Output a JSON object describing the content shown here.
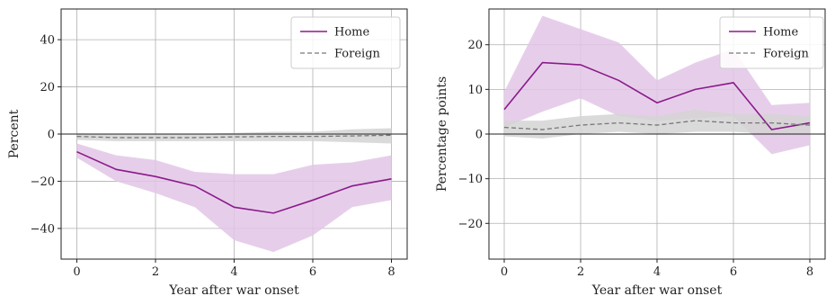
{
  "chart_data": [
    {
      "type": "line",
      "title": "",
      "xlabel": "Year after war onset",
      "ylabel": "Percent",
      "xlim": [
        -0.4,
        8.4
      ],
      "ylim": [
        -53,
        53
      ],
      "xticks": [
        0,
        2,
        4,
        6,
        8
      ],
      "yticks": [
        -40,
        -20,
        0,
        20,
        40
      ],
      "xtick_labels": [
        "0",
        "2",
        "4",
        "6",
        "8"
      ],
      "ytick_labels": [
        "−40",
        "−20",
        "0",
        "20",
        "40"
      ],
      "grid": true,
      "zero_line": true,
      "legend_position": "top-right",
      "x": [
        0,
        1,
        2,
        3,
        4,
        5,
        6,
        7,
        8
      ],
      "series": [
        {
          "name": "Home",
          "color": "#8B1A8B",
          "band_color": "#E2C6E6",
          "linestyle": "solid",
          "values": [
            -7.5,
            -15,
            -18,
            -22,
            -31,
            -33.5,
            -28,
            -22,
            -19
          ],
          "lower": [
            -10,
            -20,
            -25,
            -31,
            -45,
            -50,
            -43,
            -31,
            -28
          ],
          "upper": [
            -4,
            -9,
            -11,
            -16,
            -17,
            -17,
            -13,
            -12,
            -9
          ]
        },
        {
          "name": "Foreign",
          "color": "#777777",
          "band_color": "#D3D3D3",
          "linestyle": "dashed",
          "values": [
            -1,
            -1.5,
            -1.5,
            -1.5,
            -1.2,
            -1,
            -1,
            -0.8,
            -0.5
          ],
          "lower": [
            -2.5,
            -3,
            -3,
            -3,
            -3,
            -3,
            -3,
            -3.5,
            -4
          ],
          "upper": [
            0.3,
            0,
            0,
            0,
            0.5,
            1,
            1,
            2,
            2.5
          ]
        }
      ]
    },
    {
      "type": "line",
      "title": "",
      "xlabel": "Year after war onset",
      "ylabel": "Percentage points",
      "xlim": [
        -0.4,
        8.4
      ],
      "ylim": [
        -28,
        28
      ],
      "xticks": [
        0,
        2,
        4,
        6,
        8
      ],
      "yticks": [
        -20,
        -10,
        0,
        10,
        20
      ],
      "xtick_labels": [
        "0",
        "2",
        "4",
        "6",
        "8"
      ],
      "ytick_labels": [
        "−20",
        "−10",
        "0",
        "10",
        "20"
      ],
      "grid": true,
      "zero_line": true,
      "legend_position": "top-right",
      "x": [
        0,
        1,
        2,
        3,
        4,
        5,
        6,
        7,
        8
      ],
      "series": [
        {
          "name": "Home",
          "color": "#8B1A8B",
          "band_color": "#E2C6E6",
          "linestyle": "solid",
          "values": [
            5.5,
            16,
            15.5,
            12,
            7,
            10,
            11.5,
            1,
            2.5
          ],
          "lower": [
            1.5,
            5,
            8,
            4,
            3,
            3.5,
            4,
            -4.5,
            -2.5
          ],
          "upper": [
            9.5,
            26.5,
            23.5,
            20.5,
            12,
            16,
            19,
            6.5,
            7
          ]
        },
        {
          "name": "Foreign",
          "color": "#777777",
          "band_color": "#D3D3D3",
          "linestyle": "dashed",
          "values": [
            1.5,
            1,
            2,
            2.5,
            2,
            3,
            2.5,
            2.5,
            2
          ],
          "lower": [
            -0.5,
            -1,
            0,
            0.5,
            0,
            0.5,
            0.5,
            0,
            0
          ],
          "upper": [
            3,
            3,
            4,
            4.5,
            4,
            5.5,
            4.5,
            4.5,
            4
          ]
        }
      ]
    }
  ]
}
